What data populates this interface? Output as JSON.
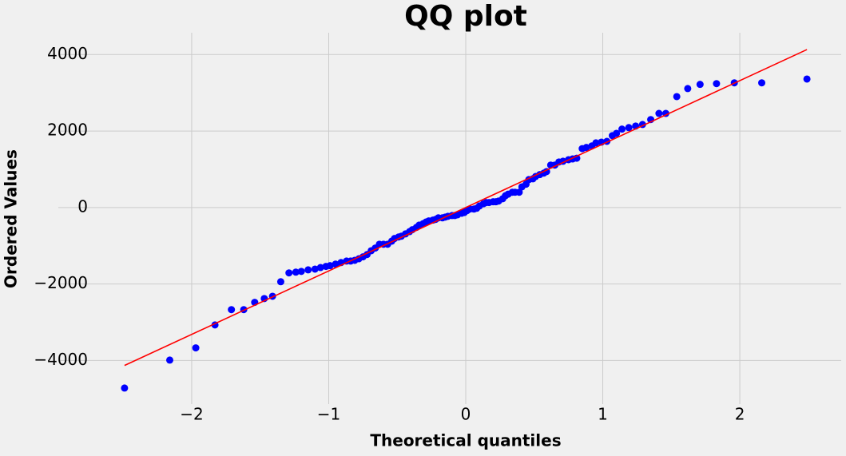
{
  "chart_data": {
    "type": "scatter",
    "title": "QQ plot",
    "title_color": "#008000",
    "x_label": "Theoretical quantiles",
    "y_label": "Ordered Values",
    "xlim": [
      -2.74,
      2.74
    ],
    "ylim": [
      -5140,
      4570
    ],
    "xticks": [
      {
        "value": -2,
        "label": "−2"
      },
      {
        "value": -1,
        "label": "−1"
      },
      0,
      1,
      2
    ],
    "yticks": [
      {
        "value": -4000,
        "label": "−4000"
      },
      {
        "value": -2000,
        "label": "−2000"
      },
      0,
      2000,
      4000
    ],
    "grid": true,
    "points": {
      "color": "#0000ff",
      "x": [
        -2.49,
        -2.16,
        -1.97,
        -1.83,
        -1.71,
        -1.62,
        -1.54,
        -1.47,
        -1.41,
        -1.35,
        -1.29,
        -1.24,
        -1.2,
        -1.15,
        -1.1,
        -1.06,
        -1.02,
        -0.99,
        -0.95,
        -0.91,
        -0.87,
        -0.84,
        -0.81,
        -0.78,
        -0.75,
        -0.72,
        -0.69,
        -0.66,
        -0.63,
        -0.6,
        -0.57,
        -0.54,
        -0.52,
        -0.49,
        -0.47,
        -0.44,
        -0.41,
        -0.39,
        -0.36,
        -0.34,
        -0.31,
        -0.29,
        -0.27,
        -0.24,
        -0.22,
        -0.2,
        -0.17,
        -0.15,
        -0.13,
        -0.1,
        -0.08,
        -0.06,
        -0.03,
        -0.01,
        0.01,
        0.03,
        0.06,
        0.08,
        0.1,
        0.13,
        0.15,
        0.17,
        0.2,
        0.22,
        0.24,
        0.27,
        0.29,
        0.31,
        0.34,
        0.36,
        0.39,
        0.41,
        0.44,
        0.46,
        0.49,
        0.51,
        0.54,
        0.57,
        0.59,
        0.62,
        0.65,
        0.68,
        0.71,
        0.75,
        0.78,
        0.81,
        0.85,
        0.88,
        0.92,
        0.95,
        0.99,
        1.03,
        1.07,
        1.1,
        1.14,
        1.19,
        1.24,
        1.29,
        1.35,
        1.41,
        1.46,
        1.54,
        1.62,
        1.71,
        1.83,
        1.96,
        2.16,
        2.49
      ],
      "y": [
        -4720,
        -3990,
        -3670,
        -3070,
        -2670,
        -2670,
        -2480,
        -2380,
        -2320,
        -1940,
        -1710,
        -1690,
        -1670,
        -1630,
        -1610,
        -1570,
        -1540,
        -1520,
        -1480,
        -1440,
        -1400,
        -1400,
        -1380,
        -1340,
        -1290,
        -1230,
        -1130,
        -1060,
        -960,
        -960,
        -960,
        -880,
        -810,
        -770,
        -750,
        -690,
        -630,
        -580,
        -520,
        -460,
        -420,
        -380,
        -350,
        -330,
        -310,
        -270,
        -270,
        -250,
        -230,
        -210,
        -210,
        -190,
        -150,
        -130,
        -80,
        -40,
        -40,
        -20,
        40,
        100,
        130,
        130,
        150,
        150,
        170,
        230,
        310,
        350,
        400,
        400,
        400,
        540,
        610,
        730,
        750,
        810,
        860,
        900,
        940,
        1110,
        1110,
        1190,
        1210,
        1250,
        1270,
        1290,
        1540,
        1570,
        1610,
        1690,
        1710,
        1730,
        1880,
        1940,
        2050,
        2090,
        2130,
        2170,
        2300,
        2460,
        2460,
        2900,
        3110,
        3220,
        3240,
        3260,
        3260,
        3360
      ]
    },
    "fit_line": {
      "color": "#ff0000",
      "x": [
        -2.49,
        2.49
      ],
      "y": [
        -4130,
        4130
      ]
    }
  }
}
